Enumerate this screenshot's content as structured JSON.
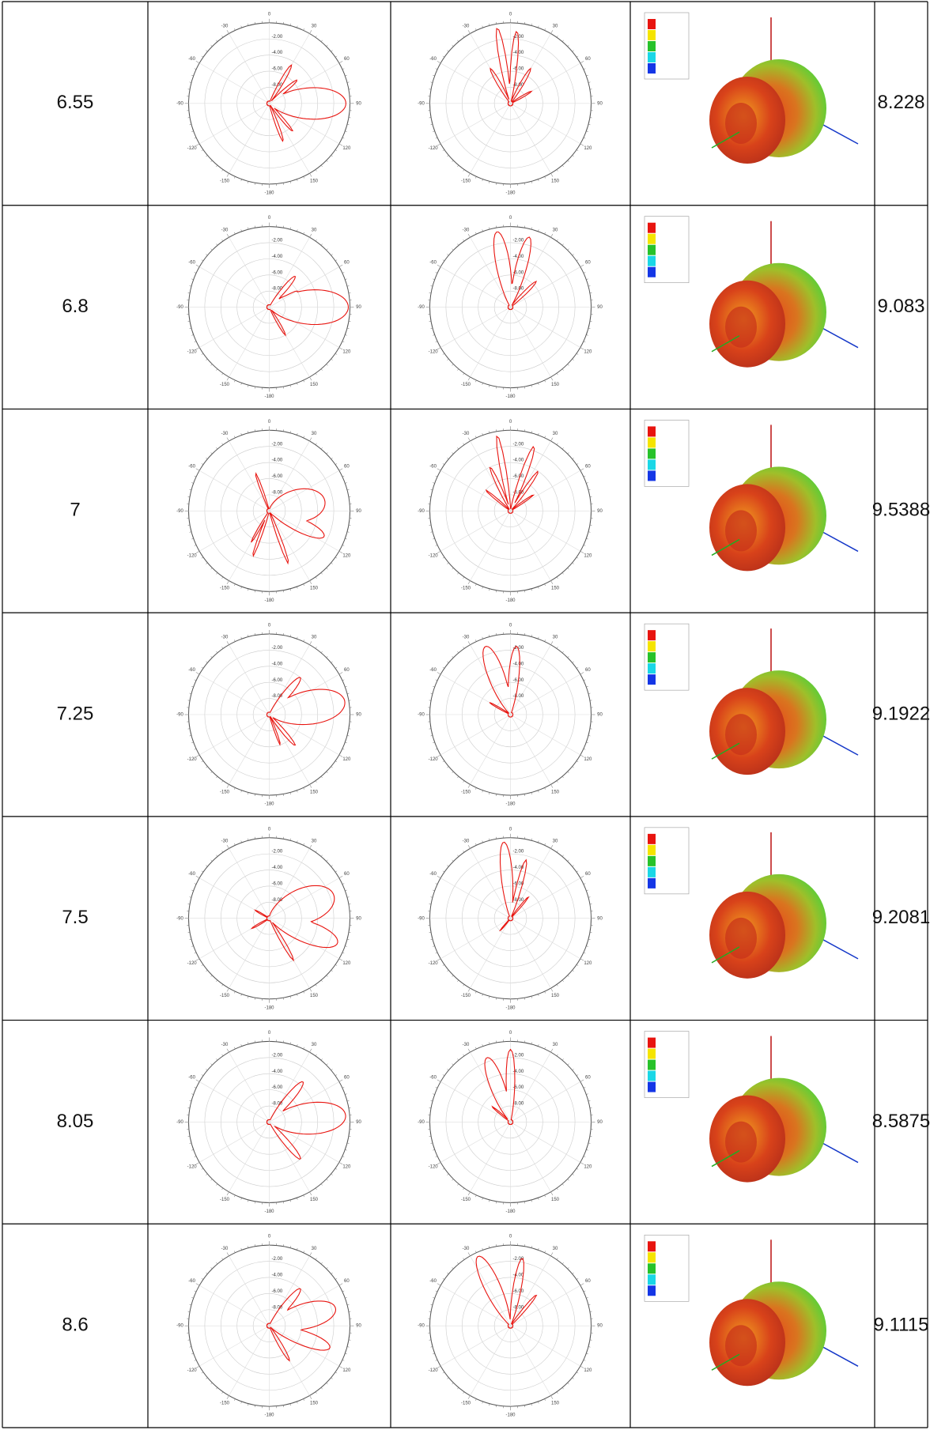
{
  "polar_axis": {
    "angle_labels": [
      "0",
      "30",
      "60",
      "90",
      "120",
      "150",
      "-180",
      "-150",
      "-120",
      "-90",
      "-60",
      "-30"
    ],
    "radial_labels": [
      "-2.00",
      "-4.00",
      "-6.00",
      "-8.00"
    ]
  },
  "table": {
    "rows": [
      {
        "frequency": "6.55",
        "gain": "8.228"
      },
      {
        "frequency": "6.8",
        "gain": "9.083"
      },
      {
        "frequency": "7",
        "gain": "9.5388"
      },
      {
        "frequency": "7.25",
        "gain": "9.1922"
      },
      {
        "frequency": "7.5",
        "gain": "9.2081"
      },
      {
        "frequency": "8.05",
        "gain": "8.5875"
      },
      {
        "frequency": "8.6",
        "gain": "9.1115"
      }
    ]
  }
}
